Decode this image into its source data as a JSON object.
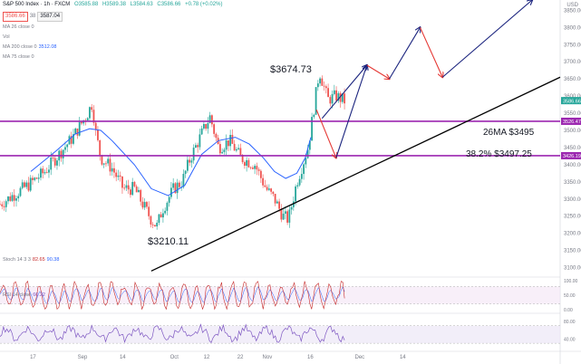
{
  "header": {
    "symbol": "S&P 500 Index · 1h · FXCM",
    "open": "O3585.88",
    "high": "H3589.38",
    "low": "L3584.63",
    "close": "C3586.66",
    "change": "+0.78 (+0.02%)",
    "bid": "3586.66",
    "spread": "38",
    "ask": "3587.04"
  },
  "currency": "USD",
  "indicators": {
    "ma26": {
      "label": "MA 26 close 0",
      "value": ""
    },
    "vol": {
      "label": "Vol",
      "value": ""
    },
    "ma200": {
      "label": "MA 200 close 0",
      "value": "3512.08"
    },
    "ma75": {
      "label": "MA 75 close 0",
      "value": ""
    },
    "stoch": {
      "label": "Stoch 14 3 3",
      "k": "82.65",
      "d": "90.38"
    },
    "rsi": {
      "label": "RSI 14 close",
      "value": "66.22"
    }
  },
  "annotations": {
    "high_label": "$3674.73",
    "low_label": "$3210.11",
    "ma_label": "26MA $3495",
    "fib_label": "38.2% $3497.25"
  },
  "price_tags": {
    "last": "3586.66",
    "level_upper": "3526.47",
    "level_lower": "3426.19"
  },
  "colors": {
    "up": "#26a69a",
    "down": "#ef5350",
    "ma": "#2962ff",
    "level": "#9c27b0",
    "trend": "#000000",
    "arrow_up": "#1a237e",
    "arrow_down": "#e53935",
    "stoch_k": "#c62828",
    "stoch_d": "#2962ff",
    "rsi": "#7e57c2"
  },
  "chart_data": {
    "type": "candlestick",
    "y_axis": {
      "ticks": [
        3100,
        3150,
        3200,
        3250,
        3300,
        3350,
        3400,
        3450,
        3500,
        3550,
        3600,
        3650,
        3700,
        3750,
        3800,
        3850
      ],
      "ylim": [
        3075,
        3880
      ]
    },
    "x_axis": {
      "tick_labels": [
        "17",
        "Sep",
        "14",
        "Oct",
        "12",
        "22",
        "Nov",
        "16",
        "Dec",
        "14"
      ]
    },
    "price_path": [
      [
        0,
        3285
      ],
      [
        0.05,
        3340
      ],
      [
        0.08,
        3380
      ],
      [
        0.11,
        3440
      ],
      [
        0.13,
        3480
      ],
      [
        0.155,
        3545
      ],
      [
        0.165,
        3580
      ],
      [
        0.17,
        3500
      ],
      [
        0.18,
        3420
      ],
      [
        0.2,
        3390
      ],
      [
        0.22,
        3330
      ],
      [
        0.24,
        3330
      ],
      [
        0.255,
        3285
      ],
      [
        0.27,
        3240
      ],
      [
        0.28,
        3220
      ],
      [
        0.29,
        3270
      ],
      [
        0.31,
        3330
      ],
      [
        0.325,
        3350
      ],
      [
        0.34,
        3420
      ],
      [
        0.36,
        3490
      ],
      [
        0.375,
        3540
      ],
      [
        0.39,
        3450
      ],
      [
        0.41,
        3470
      ],
      [
        0.43,
        3420
      ],
      [
        0.455,
        3400
      ],
      [
        0.475,
        3330
      ],
      [
        0.49,
        3300
      ],
      [
        0.505,
        3250
      ],
      [
        0.515,
        3240
      ],
      [
        0.53,
        3350
      ],
      [
        0.55,
        3450
      ],
      [
        0.56,
        3560
      ],
      [
        0.57,
        3674
      ],
      [
        0.585,
        3590
      ],
      [
        0.6,
        3600
      ],
      [
        0.615,
        3586
      ]
    ],
    "ma26_path": [
      [
        0.055,
        3380
      ],
      [
        0.1,
        3440
      ],
      [
        0.135,
        3490
      ],
      [
        0.16,
        3505
      ],
      [
        0.18,
        3500
      ],
      [
        0.2,
        3470
      ],
      [
        0.24,
        3400
      ],
      [
        0.27,
        3330
      ],
      [
        0.3,
        3310
      ],
      [
        0.33,
        3340
      ],
      [
        0.36,
        3430
      ],
      [
        0.39,
        3470
      ],
      [
        0.42,
        3480
      ],
      [
        0.445,
        3460
      ],
      [
        0.47,
        3420
      ],
      [
        0.49,
        3380
      ],
      [
        0.51,
        3360
      ],
      [
        0.53,
        3375
      ],
      [
        0.545,
        3420
      ],
      [
        0.555,
        3480
      ]
    ],
    "levels": [
      3526.47,
      3426.19
    ],
    "trendline": [
      [
        0.27,
        3090
      ],
      [
        1.0,
        3655
      ]
    ],
    "projection_arrows": [
      {
        "color": "down",
        "from": [
          0.565,
          3560
        ],
        "to": [
          0.6,
          3420
        ]
      },
      {
        "color": "up",
        "from": [
          0.6,
          3420
        ],
        "to": [
          0.655,
          3690
        ]
      },
      {
        "color": "up",
        "from": [
          0.575,
          3535
        ],
        "to": [
          0.655,
          3690
        ]
      },
      {
        "color": "down",
        "from": [
          0.655,
          3690
        ],
        "to": [
          0.695,
          3650
        ]
      },
      {
        "color": "up",
        "from": [
          0.695,
          3650
        ],
        "to": [
          0.75,
          3800
        ]
      },
      {
        "color": "down",
        "from": [
          0.75,
          3800
        ],
        "to": [
          0.79,
          3655
        ]
      },
      {
        "color": "up",
        "from": [
          0.79,
          3655
        ],
        "to": [
          0.95,
          3880
        ]
      }
    ],
    "stochastic": {
      "ticks": [
        0,
        50,
        100
      ],
      "bands": [
        20,
        80
      ]
    },
    "rsi": {
      "ticks": [
        40,
        80
      ],
      "bands": [
        30,
        70
      ]
    }
  }
}
